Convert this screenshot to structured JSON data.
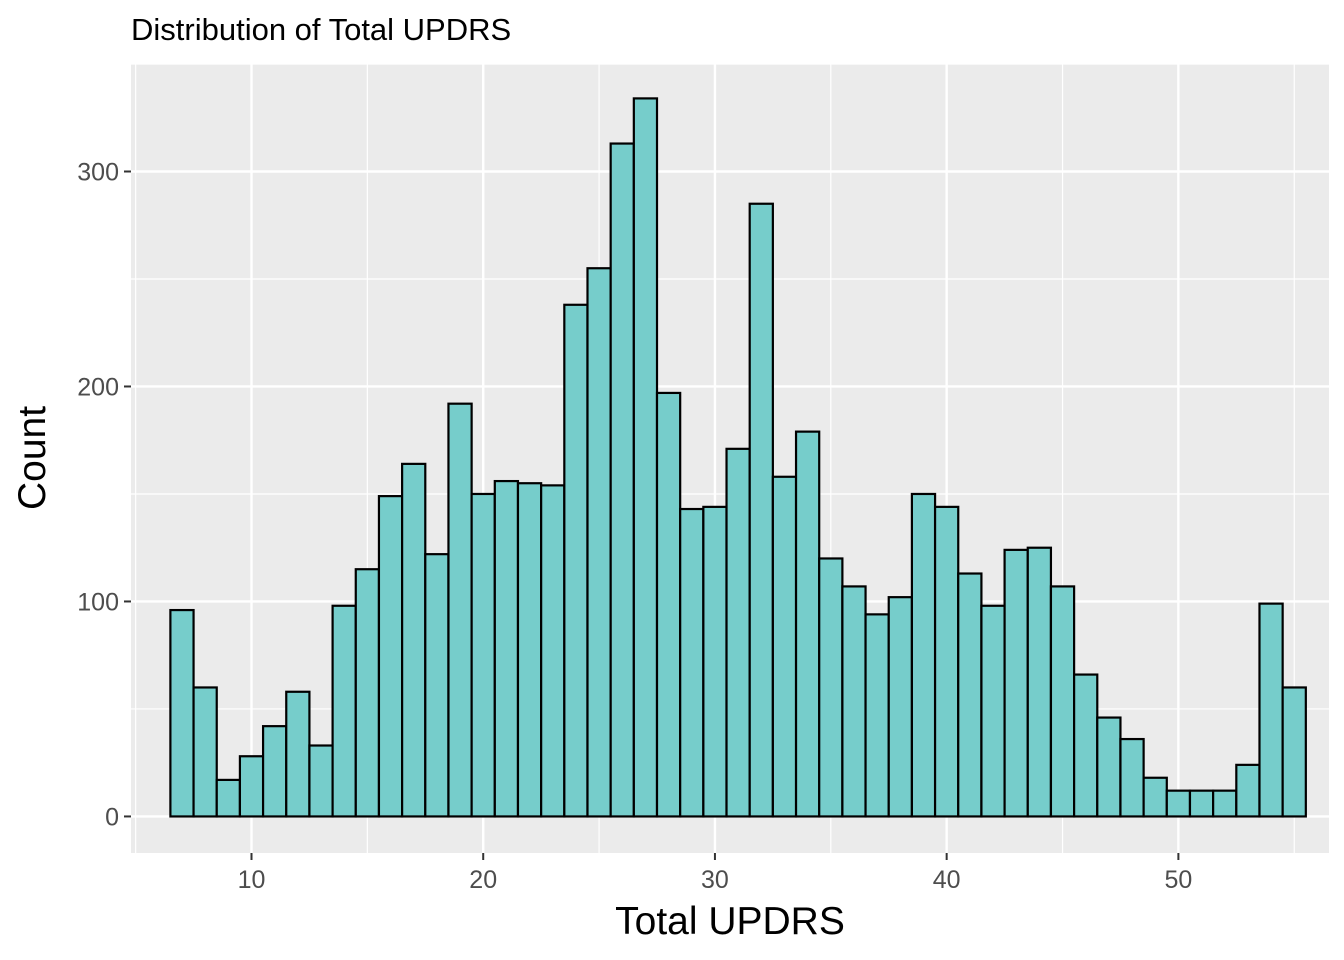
{
  "chart_data": {
    "type": "bar",
    "title": "Distribution of Total UPDRS",
    "xlabel": "Total UPDRS",
    "ylabel": "Count",
    "xlim": [
      4.8,
      56.5
    ],
    "ylim": [
      -17,
      350
    ],
    "x_ticks": [
      10,
      20,
      30,
      40,
      50
    ],
    "y_ticks": [
      0,
      100,
      200,
      300
    ],
    "bin_start": 6.5,
    "bin_width": 1.0,
    "values": [
      96,
      60,
      17,
      28,
      42,
      58,
      33,
      98,
      115,
      149,
      164,
      122,
      192,
      150,
      156,
      155,
      154,
      238,
      255,
      313,
      334,
      197,
      143,
      144,
      171,
      285,
      158,
      179,
      120,
      107,
      94,
      102,
      150,
      144,
      113,
      98,
      124,
      125,
      107,
      66,
      46,
      36,
      18,
      12,
      12,
      12,
      24,
      99,
      60
    ],
    "grid": true,
    "legend": "none",
    "colors": {
      "bar_fill": "#76cdcb",
      "bar_stroke": "#000000",
      "panel": "#ebebeb",
      "grid": "#ffffff"
    }
  }
}
